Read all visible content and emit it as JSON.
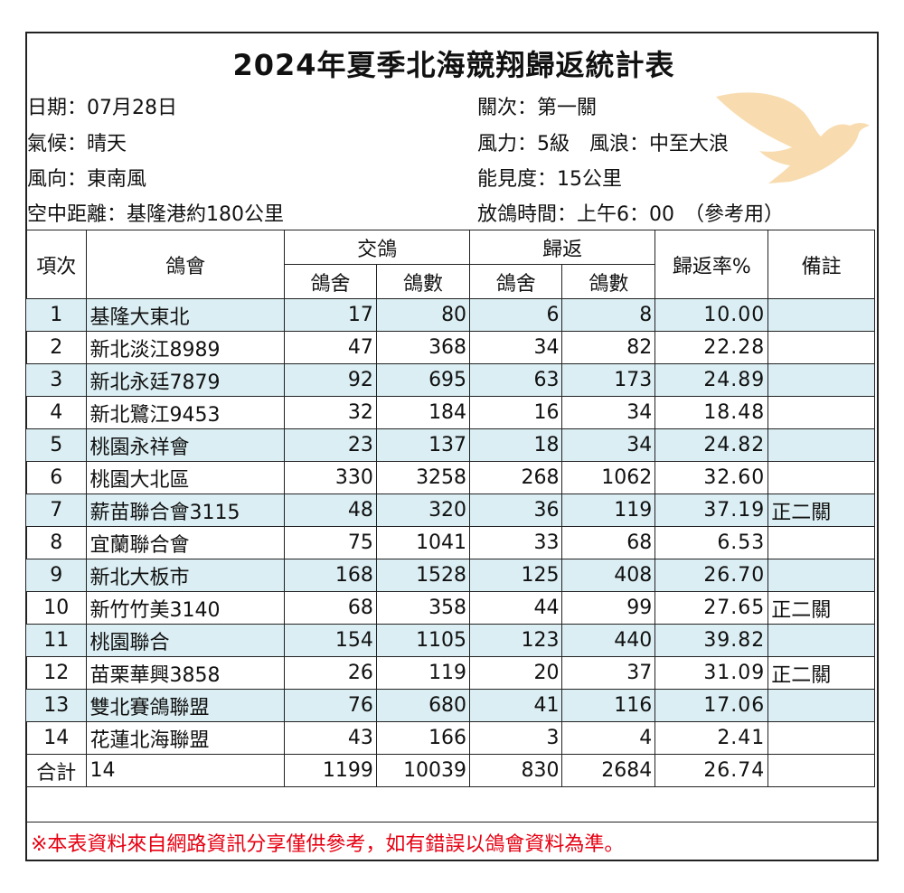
{
  "title": "2024年夏季北海競翔歸返統計表",
  "info_left": [
    "日期：07月28日",
    "氣候：晴天",
    "風向：東南風",
    "空中距離：基隆港約180公里"
  ],
  "info_right": [
    "關次：第一關",
    "風力：5級　風浪：中至大浪",
    "能見度：15公里",
    "放鴿時間：上午6：00　（參考用）"
  ],
  "dove_icon": "dove-icon",
  "dove_color": "#f8dcb0",
  "row_alt_color": "#dbeef3",
  "headers": {
    "no": "項次",
    "club": "鴿會",
    "entered": "交鴿",
    "returned": "歸返",
    "rate": "歸返率%",
    "note": "備註",
    "lofts": "鴿舍",
    "birds": "鴿數"
  },
  "rows": [
    {
      "no": "1",
      "club": "基隆大東北",
      "e_lofts": "17",
      "e_birds": "80",
      "r_lofts": "6",
      "r_birds": "8",
      "rate": "10.00",
      "note": ""
    },
    {
      "no": "2",
      "club": "新北淡江8989",
      "e_lofts": "47",
      "e_birds": "368",
      "r_lofts": "34",
      "r_birds": "82",
      "rate": "22.28",
      "note": ""
    },
    {
      "no": "3",
      "club": "新北永廷7879",
      "e_lofts": "92",
      "e_birds": "695",
      "r_lofts": "63",
      "r_birds": "173",
      "rate": "24.89",
      "note": ""
    },
    {
      "no": "4",
      "club": "新北鷺江9453",
      "e_lofts": "32",
      "e_birds": "184",
      "r_lofts": "16",
      "r_birds": "34",
      "rate": "18.48",
      "note": ""
    },
    {
      "no": "5",
      "club": "桃園永祥會",
      "e_lofts": "23",
      "e_birds": "137",
      "r_lofts": "18",
      "r_birds": "34",
      "rate": "24.82",
      "note": ""
    },
    {
      "no": "6",
      "club": "桃園大北區",
      "e_lofts": "330",
      "e_birds": "3258",
      "r_lofts": "268",
      "r_birds": "1062",
      "rate": "32.60",
      "note": ""
    },
    {
      "no": "7",
      "club": "薪苗聯合會3115",
      "e_lofts": "48",
      "e_birds": "320",
      "r_lofts": "36",
      "r_birds": "119",
      "rate": "37.19",
      "note": "正二關"
    },
    {
      "no": "8",
      "club": "宜蘭聯合會",
      "e_lofts": "75",
      "e_birds": "1041",
      "r_lofts": "33",
      "r_birds": "68",
      "rate": "6.53",
      "note": ""
    },
    {
      "no": "9",
      "club": "新北大板市",
      "e_lofts": "168",
      "e_birds": "1528",
      "r_lofts": "125",
      "r_birds": "408",
      "rate": "26.70",
      "note": ""
    },
    {
      "no": "10",
      "club": "新竹竹美3140",
      "e_lofts": "68",
      "e_birds": "358",
      "r_lofts": "44",
      "r_birds": "99",
      "rate": "27.65",
      "note": "正二關"
    },
    {
      "no": "11",
      "club": "桃園聯合",
      "e_lofts": "154",
      "e_birds": "1105",
      "r_lofts": "123",
      "r_birds": "440",
      "rate": "39.82",
      "note": ""
    },
    {
      "no": "12",
      "club": "苗栗華興3858",
      "e_lofts": "26",
      "e_birds": "119",
      "r_lofts": "20",
      "r_birds": "37",
      "rate": "31.09",
      "note": "正二關"
    },
    {
      "no": "13",
      "club": "雙北賽鴿聯盟",
      "e_lofts": "76",
      "e_birds": "680",
      "r_lofts": "41",
      "r_birds": "116",
      "rate": "17.06",
      "note": ""
    },
    {
      "no": "14",
      "club": "花蓮北海聯盟",
      "e_lofts": "43",
      "e_birds": "166",
      "r_lofts": "3",
      "r_birds": "4",
      "rate": "2.41",
      "note": ""
    }
  ],
  "total": {
    "label": "合計",
    "count": "14",
    "e_lofts": "1199",
    "e_birds": "10039",
    "r_lofts": "830",
    "r_birds": "2684",
    "rate": "26.74",
    "note": ""
  },
  "footer_note": "※本表資料來自網路資訊分享僅供參考，如有錯誤以鴿會資料為準。",
  "footer_color": "#e60012"
}
